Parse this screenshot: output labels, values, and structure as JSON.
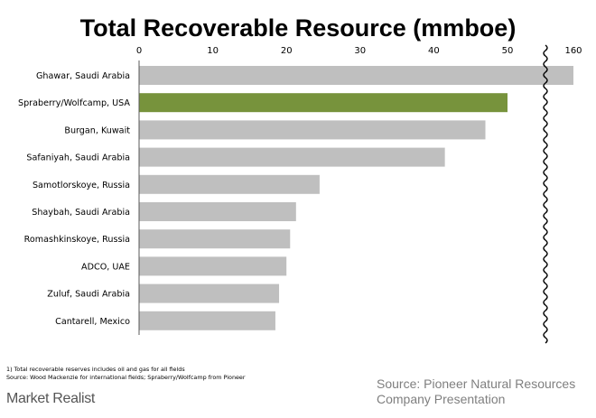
{
  "chart_data": {
    "type": "bar",
    "orientation": "horizontal",
    "title": "Total Recoverable Resource (mmboe)",
    "categories": [
      "Ghawar, Saudi Arabia",
      "Spraberry/Wolfcamp, USA",
      "Burgan, Kuwait",
      "Safaniyah, Saudi Arabia",
      "Samotlorskoye, Russia",
      "Shaybah, Saudi Arabia",
      "Romashkinskoye, Russia",
      "ADCO, UAE",
      "Zuluf, Saudi Arabia",
      "Cantarell, Mexico"
    ],
    "values": [
      160,
      50,
      47,
      41.5,
      24.5,
      21.3,
      20.5,
      20,
      19,
      18.5
    ],
    "x_ticks": [
      "0",
      "10",
      "20",
      "30",
      "40",
      "50",
      "160"
    ],
    "xlim": [
      0,
      55
    ],
    "axis_break": {
      "after": 55,
      "resume_label": "160"
    },
    "xlabel": "",
    "ylabel": "",
    "grid": false,
    "colors": {
      "default": "#bfbfbf",
      "highlight": "#77933c"
    },
    "highlight_category": "Spraberry/Wolfcamp, USA"
  },
  "footnotes": [
    "1) Total recoverable reserves includes oil and gas for all fields",
    "Source: Wood Mackenzie for international fields; Spraberry/Wolfcamp from Pioneer"
  ],
  "source_lines": [
    "Source: Pioneer Natural Resources",
    "Company Presentation"
  ],
  "brand": "Market Realist"
}
